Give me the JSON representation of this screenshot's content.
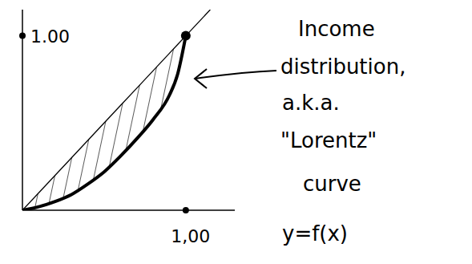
{
  "chart_data": {
    "type": "line",
    "x": [
      0,
      0.1,
      0.2,
      0.3,
      0.4,
      0.5,
      0.6,
      0.7,
      0.8,
      0.9,
      0.95,
      1,
      1.15
    ],
    "series": [
      {
        "color": "#000000",
        "values": [
          0,
          0.1,
          0.2,
          0.3,
          0.4,
          0.5,
          0.6,
          0.7,
          0.8,
          0.9,
          0.95,
          1,
          1.15
        ]
      },
      {
        "color": "#000000",
        "values": [
          0,
          0.02,
          0.05,
          0.09,
          0.15,
          0.22,
          0.31,
          0.41,
          0.52,
          0.66,
          0.78,
          1,
          null
        ]
      }
    ],
    "xlim": [
      0,
      1.3
    ],
    "ylim": [
      0,
      1.15
    ],
    "xticks": [
      {
        "value": 1,
        "label": "1,00"
      }
    ],
    "yticks": [
      {
        "value": 1,
        "label": "1.00"
      }
    ],
    "grid": false,
    "annotation": [
      "Income",
      "distribution,",
      "a.k.a.",
      "\"Lorentz\"",
      "curve",
      "y=f(x)"
    ]
  }
}
